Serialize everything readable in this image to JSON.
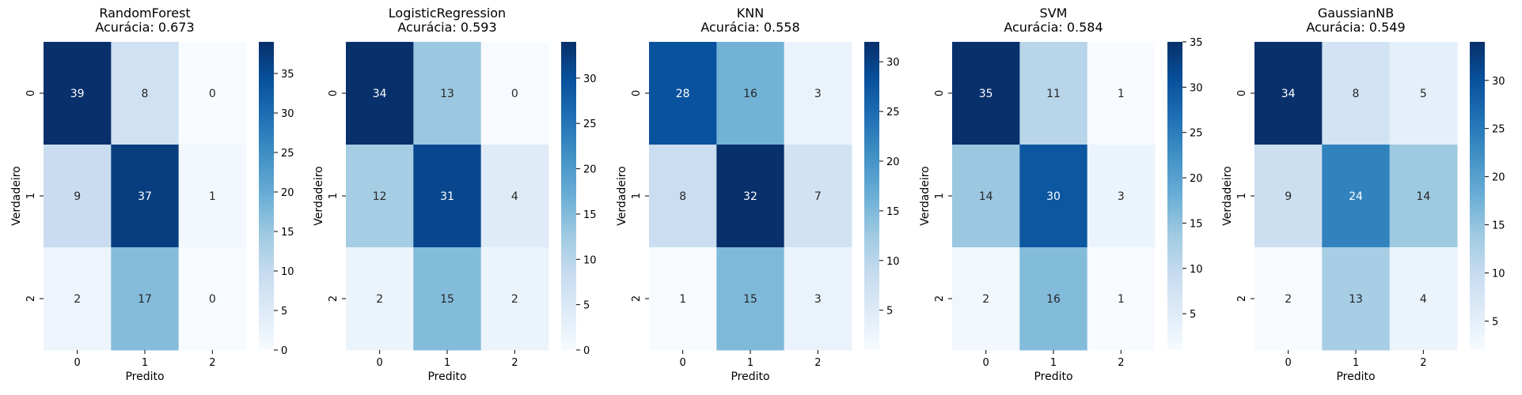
{
  "chart_data": [
    {
      "type": "heatmap",
      "title": "RandomForest",
      "subtitle": "Acurácia: 0.673",
      "xlabel": "Predito",
      "ylabel": "Verdadeiro",
      "x_categories": [
        "0",
        "1",
        "2"
      ],
      "y_categories": [
        "0",
        "1",
        "2"
      ],
      "values": [
        [
          39,
          8,
          0
        ],
        [
          9,
          37,
          1
        ],
        [
          2,
          17,
          0
        ]
      ],
      "colorbar": {
        "min": 0,
        "max": 39,
        "ticks": [
          0,
          5,
          10,
          15,
          20,
          25,
          30,
          35
        ]
      }
    },
    {
      "type": "heatmap",
      "title": "LogisticRegression",
      "subtitle": "Acurácia: 0.593",
      "xlabel": "Predito",
      "ylabel": "Verdadeiro",
      "x_categories": [
        "0",
        "1",
        "2"
      ],
      "y_categories": [
        "0",
        "1",
        "2"
      ],
      "values": [
        [
          34,
          13,
          0
        ],
        [
          12,
          31,
          4
        ],
        [
          2,
          15,
          2
        ]
      ],
      "colorbar": {
        "min": 0,
        "max": 34,
        "ticks": [
          0,
          5,
          10,
          15,
          20,
          25,
          30
        ]
      }
    },
    {
      "type": "heatmap",
      "title": "KNN",
      "subtitle": "Acurácia: 0.558",
      "xlabel": "Predito",
      "ylabel": "Verdadeiro",
      "x_categories": [
        "0",
        "1",
        "2"
      ],
      "y_categories": [
        "0",
        "1",
        "2"
      ],
      "values": [
        [
          28,
          16,
          3
        ],
        [
          8,
          32,
          7
        ],
        [
          1,
          15,
          3
        ]
      ],
      "colorbar": {
        "min": 1,
        "max": 32,
        "ticks": [
          5,
          10,
          15,
          20,
          25,
          30
        ]
      }
    },
    {
      "type": "heatmap",
      "title": "SVM",
      "subtitle": "Acurácia: 0.584",
      "xlabel": "Predito",
      "ylabel": "Verdadeiro",
      "x_categories": [
        "0",
        "1",
        "2"
      ],
      "y_categories": [
        "0",
        "1",
        "2"
      ],
      "values": [
        [
          35,
          11,
          1
        ],
        [
          14,
          30,
          3
        ],
        [
          2,
          16,
          1
        ]
      ],
      "colorbar": {
        "min": 1,
        "max": 35,
        "ticks": [
          5,
          10,
          15,
          20,
          25,
          30,
          35
        ]
      }
    },
    {
      "type": "heatmap",
      "title": "GaussianNB",
      "subtitle": "Acurácia: 0.549",
      "xlabel": "Predito",
      "ylabel": "Verdadeiro",
      "x_categories": [
        "0",
        "1",
        "2"
      ],
      "y_categories": [
        "0",
        "1",
        "2"
      ],
      "values": [
        [
          34,
          8,
          5
        ],
        [
          9,
          24,
          14
        ],
        [
          2,
          13,
          4
        ]
      ],
      "colorbar": {
        "min": 2,
        "max": 34,
        "ticks": [
          5,
          10,
          15,
          20,
          25,
          30
        ]
      }
    }
  ],
  "colormap": [
    "#f7fbff",
    "#deebf7",
    "#c6dbef",
    "#9ecae1",
    "#6baed6",
    "#4292c6",
    "#2171b5",
    "#08519c",
    "#08306b"
  ]
}
